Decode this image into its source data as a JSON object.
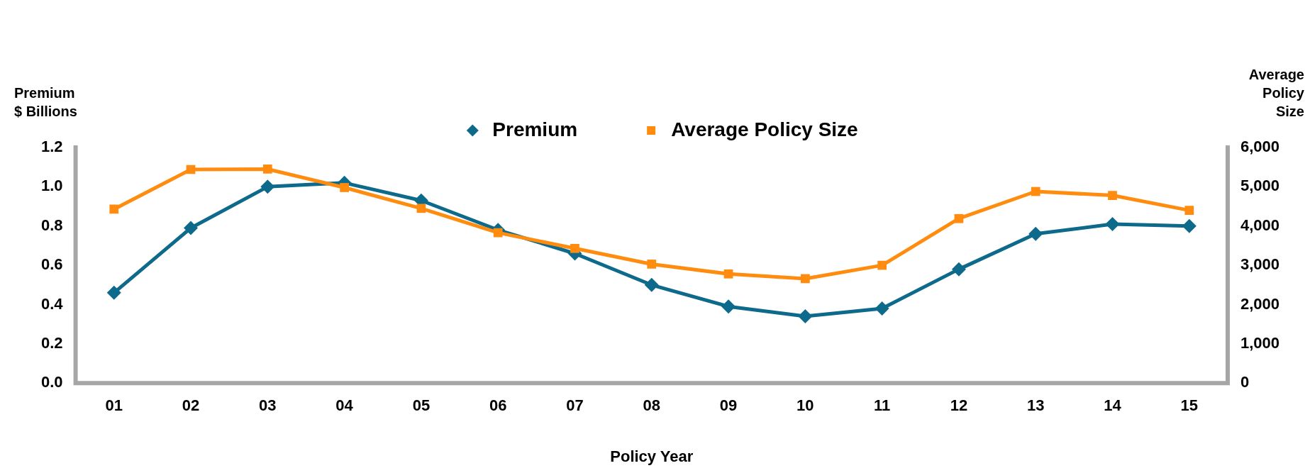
{
  "chart_data": {
    "type": "line",
    "xlabel": "Policy Year",
    "ylabel": "Premium $ Billions",
    "y2label": "Average Policy Size",
    "categories": [
      "01",
      "02",
      "03",
      "04",
      "05",
      "06",
      "07",
      "08",
      "09",
      "10",
      "11",
      "12",
      "13",
      "14",
      "15"
    ],
    "series": [
      {
        "name": "Premium",
        "color": "#0e6a8a",
        "marker": "diamond",
        "values": [
          0.46,
          0.79,
          1.0,
          1.02,
          0.93,
          0.78,
          0.66,
          0.5,
          0.39,
          0.34,
          0.38,
          0.58,
          0.76,
          0.81,
          0.8
        ]
      },
      {
        "name": "Average Policy Size",
        "color": "#ff8c0f",
        "marker": "square",
        "axis": "y2",
        "values": [
          4430,
          5440,
          5450,
          4980,
          4450,
          3830,
          3430,
          3030,
          2780,
          2660,
          3000,
          4190,
          4880,
          4780,
          4400
        ]
      }
    ],
    "ylim": [
      0,
      1.2
    ],
    "yticks": [
      {
        "value": 0,
        "label": "0.0"
      },
      0.2,
      0.4,
      0.6,
      0.8,
      {
        "value": 1,
        "label": "1.0"
      },
      1.2
    ],
    "y2lim": [
      0,
      6000
    ],
    "y2ticks": [
      0,
      {
        "value": 1000,
        "label": "1,000"
      },
      {
        "value": 2000,
        "label": "2,000"
      },
      {
        "value": 3000,
        "label": "3,000"
      },
      {
        "value": 4000,
        "label": "4,000"
      },
      {
        "value": 5000,
        "label": "5,000"
      },
      {
        "value": 6000,
        "label": "6,000"
      }
    ],
    "grid": false,
    "legend": "top",
    "line_style": "solid"
  }
}
